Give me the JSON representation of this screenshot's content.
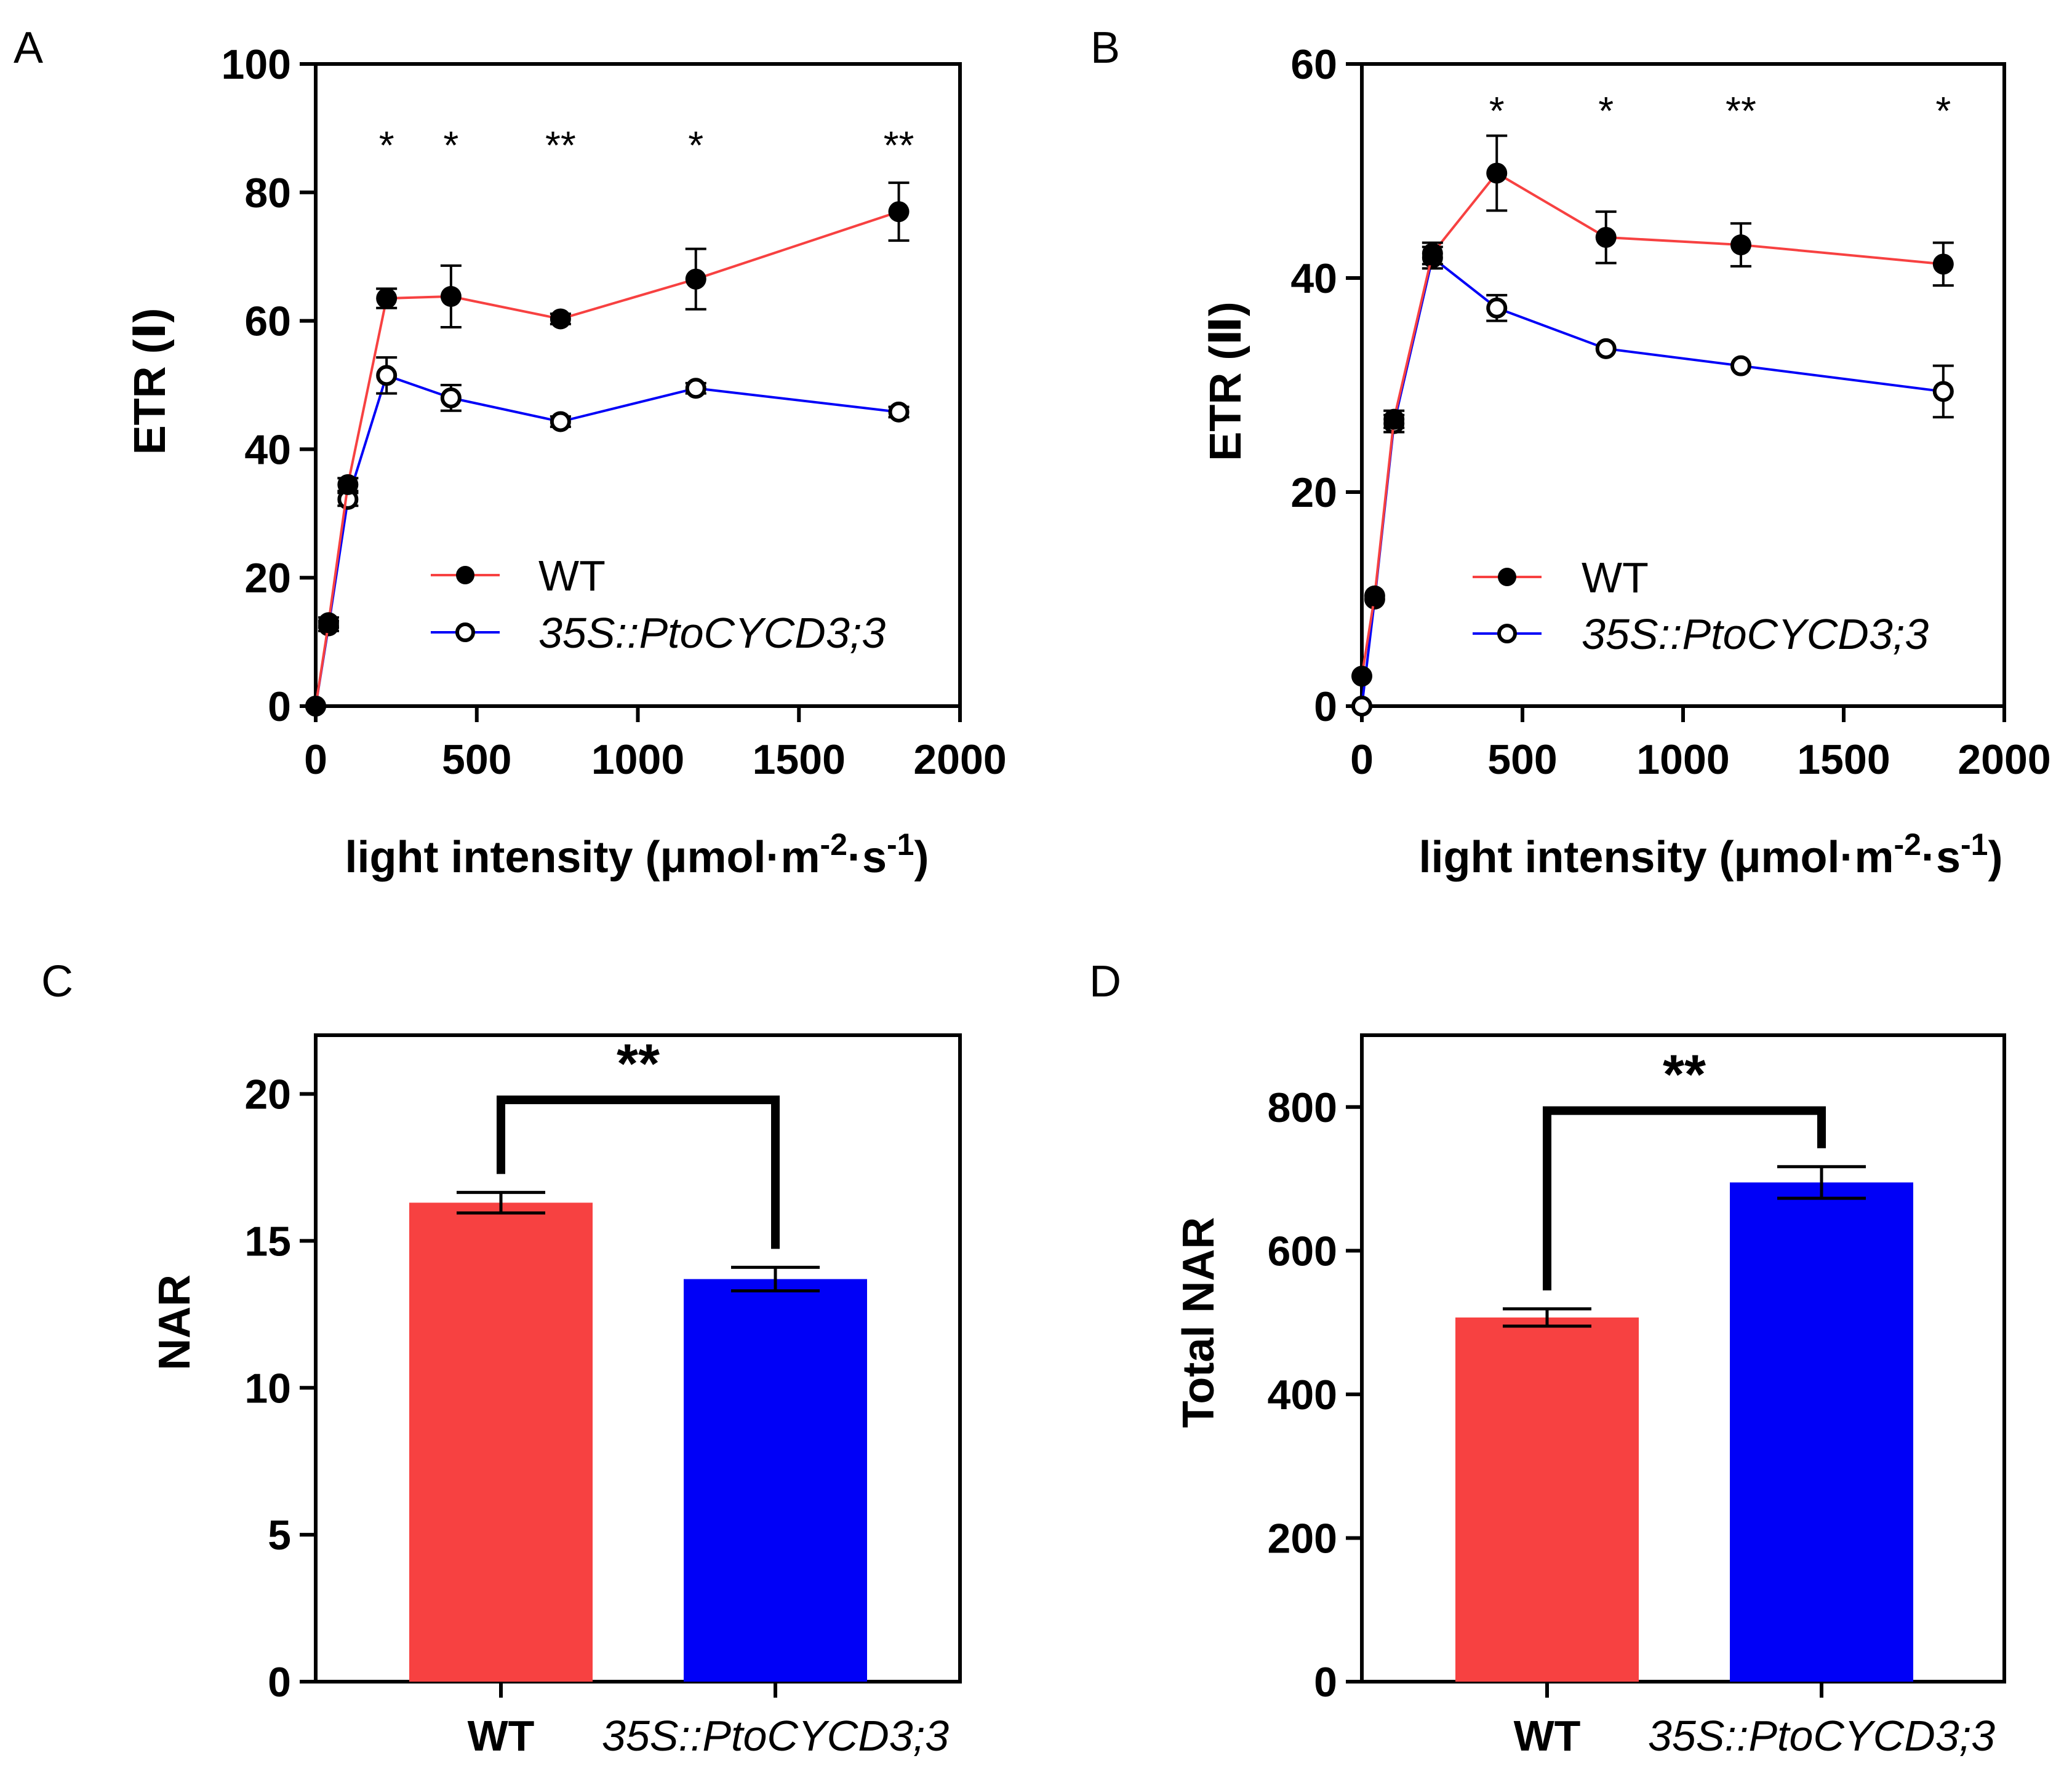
{
  "panels": [
    "A",
    "B",
    "C",
    "D"
  ],
  "colors": {
    "wt": "#f74141",
    "mut": "#0000f7",
    "axis": "#000000"
  },
  "legend": {
    "wt": "WT",
    "mut": "35S::PtoCYCD3;3"
  },
  "light_label": {
    "main": "light intensity (μmol·m",
    "sup1": "-2",
    "mid": "·s",
    "sup2": "-1",
    "end": ")"
  },
  "chart_data": [
    {
      "id": "A",
      "type": "line",
      "ylabel": "ETR (Ⅰ)",
      "xlim": [
        0,
        2000
      ],
      "ylim": [
        0,
        100
      ],
      "xticks": [
        0,
        500,
        1000,
        1500,
        2000
      ],
      "yticks": [
        0,
        20,
        40,
        60,
        80,
        100
      ],
      "series": [
        {
          "name": "WT",
          "x": [
            0,
            40,
            100,
            220,
            420,
            760,
            1180,
            1810
          ],
          "values": [
            0,
            13,
            34.5,
            63.5,
            63.8,
            60.3,
            66.5,
            77
          ],
          "errors": [
            0,
            0.8,
            1,
            1.5,
            4.8,
            0.8,
            4.7,
            4.5
          ]
        },
        {
          "name": "35S::PtoCYCD3;3",
          "x": [
            0,
            40,
            100,
            220,
            420,
            760,
            1180,
            1810
          ],
          "values": [
            0,
            12.5,
            32.2,
            51.5,
            48,
            44.3,
            49.5,
            45.8
          ],
          "errors": [
            0,
            0.8,
            1,
            2.8,
            2,
            0.8,
            0.8,
            0.8
          ]
        }
      ],
      "annotations": [
        {
          "x": 220,
          "text": "*"
        },
        {
          "x": 420,
          "text": "*"
        },
        {
          "x": 760,
          "text": "**"
        },
        {
          "x": 1180,
          "text": "*"
        },
        {
          "x": 1810,
          "text": "**"
        }
      ]
    },
    {
      "id": "B",
      "type": "line",
      "ylabel": "ETR (Ⅱ)",
      "xlim": [
        0,
        2000
      ],
      "ylim": [
        0,
        60
      ],
      "xticks": [
        0,
        500,
        1000,
        1500,
        2000
      ],
      "yticks": [
        0,
        20,
        40,
        60
      ],
      "series": [
        {
          "name": "WT",
          "x": [
            0,
            40,
            100,
            220,
            420,
            760,
            1180,
            1810
          ],
          "values": [
            2.8,
            10.3,
            26.8,
            42.3,
            49.8,
            43.8,
            43.1,
            41.3
          ],
          "errors": [
            0.5,
            0.6,
            0.8,
            1,
            3.5,
            2.4,
            2,
            2
          ]
        },
        {
          "name": "35S::PtoCYCD3;3",
          "x": [
            0,
            40,
            100,
            220,
            420,
            760,
            1180,
            1810
          ],
          "values": [
            0,
            10,
            26.4,
            41.9,
            37.2,
            33.4,
            31.8,
            29.4
          ],
          "errors": [
            0,
            0.5,
            0.8,
            1,
            1.2,
            0.6,
            0.6,
            2.4
          ]
        }
      ],
      "annotations": [
        {
          "x": 420,
          "text": "*"
        },
        {
          "x": 760,
          "text": "*"
        },
        {
          "x": 1180,
          "text": "**"
        },
        {
          "x": 1810,
          "text": "*"
        }
      ]
    },
    {
      "id": "C",
      "type": "bar",
      "ylabel": "NAR",
      "categories": [
        "WT",
        "35S::PtoCYCD3;3"
      ],
      "values": [
        16.3,
        13.7
      ],
      "errors": [
        0.35,
        0.4
      ],
      "ylim": [
        0,
        22
      ],
      "yticks": [
        0,
        5,
        10,
        15,
        20
      ],
      "significance": "**",
      "bracket_y": 19.8
    },
    {
      "id": "D",
      "type": "bar",
      "ylabel": "Total NAR",
      "categories": [
        "WT",
        "35S::PtoCYCD3;3"
      ],
      "values": [
        507,
        695
      ],
      "errors": [
        12,
        22
      ],
      "ylim": [
        0,
        900
      ],
      "yticks": [
        0,
        200,
        400,
        600,
        800
      ],
      "significance": "**",
      "bracket_y": 795
    }
  ]
}
